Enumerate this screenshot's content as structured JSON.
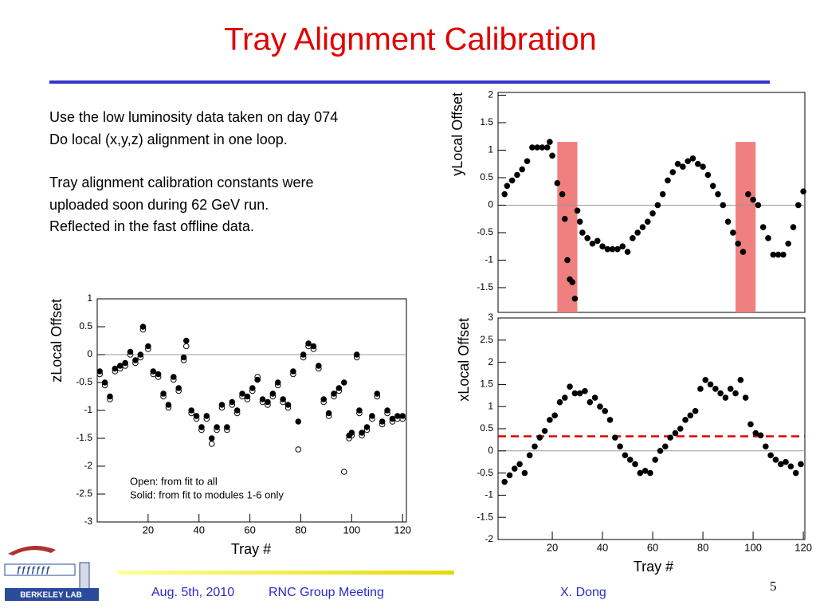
{
  "title": "Tray Alignment Calibration",
  "text_lines": [
    "Use the low luminosity data taken on day 074",
    "Do local (x,y,z) alignment in one loop.",
    "Tray alignment calibration constants were",
    "uploaded soon during 62 GeV run.",
    "Reflected in the fast offline data."
  ],
  "footer": {
    "date": "Aug. 5th, 2010",
    "meeting": "RNC Group Meeting",
    "author": "X. Dong",
    "page": "5",
    "logo_text": "BERKELEY LAB"
  },
  "chart_data": [
    {
      "type": "scatter",
      "ylabel": "yLocal Offset",
      "xlim": [
        -1.6,
        120.6
      ],
      "ylim": [
        -1.95,
        2.05
      ],
      "yticks": [
        -1.5,
        -1,
        -0.5,
        0,
        0.5,
        1,
        1.5,
        2
      ],
      "reference_lines": [
        {
          "value": 0,
          "color": "#999999",
          "dash": false
        }
      ],
      "highlight_bands": [
        {
          "x": [
            22,
            30
          ],
          "top": 1.15,
          "color": "#f08080"
        },
        {
          "x": [
            93,
            101
          ],
          "top": 1.15,
          "color": "#f08080"
        }
      ],
      "x": [
        1,
        2,
        4,
        6,
        8,
        10,
        12,
        14,
        16,
        18,
        19,
        20,
        22,
        24,
        25,
        26,
        27,
        28,
        29,
        30,
        31,
        32,
        34,
        36,
        38,
        40,
        42,
        44,
        46,
        48,
        50,
        52,
        54,
        56,
        58,
        60,
        62,
        64,
        66,
        68,
        70,
        72,
        74,
        76,
        78,
        80,
        82,
        84,
        86,
        88,
        90,
        92,
        94,
        96,
        98,
        100,
        102,
        104,
        106,
        108,
        110,
        112,
        114,
        116,
        118,
        120
      ],
      "series": [
        {
          "color": "#000000",
          "filled": true,
          "values": [
            0.2,
            0.35,
            0.45,
            0.55,
            0.65,
            0.8,
            1.05,
            1.05,
            1.05,
            1.05,
            1.15,
            0.9,
            0.4,
            0.2,
            -0.25,
            -1.0,
            -1.35,
            -1.4,
            -1.7,
            -0.1,
            -0.3,
            -0.5,
            -0.6,
            -0.7,
            -0.65,
            -0.75,
            -0.8,
            -0.8,
            -0.8,
            -0.75,
            -0.85,
            -0.6,
            -0.5,
            -0.4,
            -0.3,
            -0.15,
            0.0,
            0.2,
            0.45,
            0.6,
            0.75,
            0.7,
            0.8,
            0.85,
            0.75,
            0.7,
            0.55,
            0.35,
            0.2,
            0.0,
            -0.3,
            -0.5,
            -0.7,
            -0.85,
            0.2,
            0.1,
            0.0,
            -0.4,
            -0.6,
            -0.9,
            -0.9,
            -0.9,
            -0.7,
            -0.4,
            0.0,
            0.25
          ]
        }
      ]
    },
    {
      "type": "scatter",
      "ylabel": "xLocal Offset",
      "xlabel": "Tray #",
      "xlim": [
        -1.6,
        120.6
      ],
      "ylim": [
        -2,
        3
      ],
      "xticks": [
        20,
        40,
        60,
        80,
        100,
        120
      ],
      "yticks": [
        -2,
        -1.5,
        -1,
        -0.5,
        0,
        0.5,
        1,
        1.5,
        2,
        2.5,
        3
      ],
      "reference_lines": [
        {
          "value": 0,
          "color": "#999999",
          "dash": false
        },
        {
          "value": 0.33,
          "color": "#e00000",
          "dash": true
        }
      ],
      "x": [
        1,
        3,
        5,
        7,
        9,
        11,
        13,
        15,
        17,
        19,
        21,
        23,
        25,
        27,
        29,
        31,
        33,
        35,
        37,
        39,
        41,
        43,
        45,
        47,
        49,
        51,
        53,
        55,
        57,
        59,
        61,
        63,
        65,
        67,
        69,
        71,
        73,
        75,
        77,
        79,
        81,
        83,
        85,
        87,
        89,
        91,
        93,
        95,
        97,
        99,
        101,
        103,
        105,
        107,
        109,
        111,
        113,
        115,
        117,
        119
      ],
      "series": [
        {
          "color": "#000000",
          "filled": true,
          "values": [
            -0.7,
            -0.55,
            -0.4,
            -0.3,
            -0.5,
            -0.1,
            0.1,
            0.3,
            0.45,
            0.7,
            0.8,
            1.1,
            1.2,
            1.45,
            1.3,
            1.3,
            1.35,
            1.1,
            1.2,
            1.0,
            0.9,
            0.7,
            0.3,
            0.1,
            -0.1,
            -0.2,
            -0.3,
            -0.5,
            -0.45,
            -0.5,
            -0.2,
            0.0,
            0.1,
            0.3,
            0.4,
            0.5,
            0.7,
            0.8,
            0.9,
            1.4,
            1.6,
            1.5,
            1.4,
            1.3,
            1.2,
            1.4,
            1.3,
            1.6,
            1.2,
            0.6,
            0.4,
            0.35,
            0.1,
            -0.1,
            -0.2,
            -0.3,
            -0.25,
            -0.35,
            -0.5,
            -0.3
          ]
        }
      ]
    },
    {
      "type": "scatter",
      "ylabel": "zLocal Offset",
      "xlabel": "Tray #",
      "xlim": [
        0,
        121.5
      ],
      "ylim": [
        -3,
        1
      ],
      "xticks": [
        20,
        40,
        60,
        80,
        100,
        120
      ],
      "yticks": [
        -3,
        -2.5,
        -2,
        -1.5,
        -1,
        -0.5,
        0,
        0.5,
        1
      ],
      "reference_lines": [
        {
          "value": 0,
          "color": "#999999",
          "dash": false
        }
      ],
      "annotations": [
        "Open: from fit to all",
        "Solid: from fit to modules 1-6 only"
      ],
      "x": [
        1,
        3,
        5,
        7,
        9,
        11,
        13,
        15,
        17,
        18,
        20,
        22,
        24,
        26,
        28,
        30,
        32,
        34,
        35,
        37,
        39,
        41,
        43,
        45,
        47,
        49,
        51,
        53,
        55,
        57,
        59,
        61,
        63,
        65,
        67,
        69,
        71,
        73,
        75,
        77,
        79,
        81,
        83,
        85,
        87,
        89,
        91,
        93,
        95,
        97,
        99,
        100,
        102,
        103,
        104,
        106,
        108,
        110,
        112,
        114,
        116,
        118,
        120
      ],
      "series": [
        {
          "color": "#000000",
          "filled": false,
          "values": [
            -0.35,
            -0.55,
            -0.8,
            -0.3,
            -0.25,
            -0.2,
            0.0,
            -0.15,
            -0.05,
            0.45,
            0.1,
            -0.35,
            -0.4,
            -0.75,
            -0.95,
            -0.45,
            -0.65,
            -0.1,
            0.15,
            -1.05,
            -1.15,
            -1.35,
            -1.15,
            -1.6,
            -1.35,
            -0.95,
            -1.35,
            -0.9,
            -1.05,
            -0.75,
            -0.8,
            -0.65,
            -0.4,
            -0.85,
            -0.9,
            -0.75,
            -0.55,
            -0.85,
            -0.95,
            -0.35,
            -1.7,
            -0.05,
            0.15,
            0.1,
            -0.25,
            -0.85,
            -1.1,
            -0.75,
            -0.65,
            -2.1,
            -1.5,
            -1.45,
            -0.05,
            -1.05,
            -1.45,
            -1.35,
            -1.15,
            -0.75,
            -1.25,
            -1.05,
            -1.2,
            -1.15,
            -1.15
          ]
        },
        {
          "color": "#000000",
          "filled": true,
          "values": [
            -0.3,
            -0.5,
            -0.75,
            -0.25,
            -0.2,
            -0.15,
            0.05,
            -0.1,
            0.0,
            0.5,
            0.15,
            -0.3,
            -0.35,
            -0.7,
            -0.9,
            -0.4,
            -0.6,
            -0.05,
            0.25,
            -1.0,
            -1.1,
            -1.3,
            -1.1,
            -1.5,
            -1.3,
            -0.9,
            -1.3,
            -0.85,
            -1.0,
            -0.7,
            -0.75,
            -0.6,
            -0.45,
            -0.8,
            -0.85,
            -0.7,
            -0.5,
            -0.8,
            -0.9,
            -0.3,
            -1.2,
            0.0,
            0.2,
            0.15,
            -0.2,
            -0.8,
            -1.05,
            -0.7,
            -0.6,
            -0.5,
            -1.45,
            -1.4,
            0.0,
            -1.0,
            -1.4,
            -1.3,
            -1.1,
            -0.7,
            -1.2,
            -1.0,
            -1.15,
            -1.1,
            -1.1
          ]
        }
      ]
    }
  ]
}
